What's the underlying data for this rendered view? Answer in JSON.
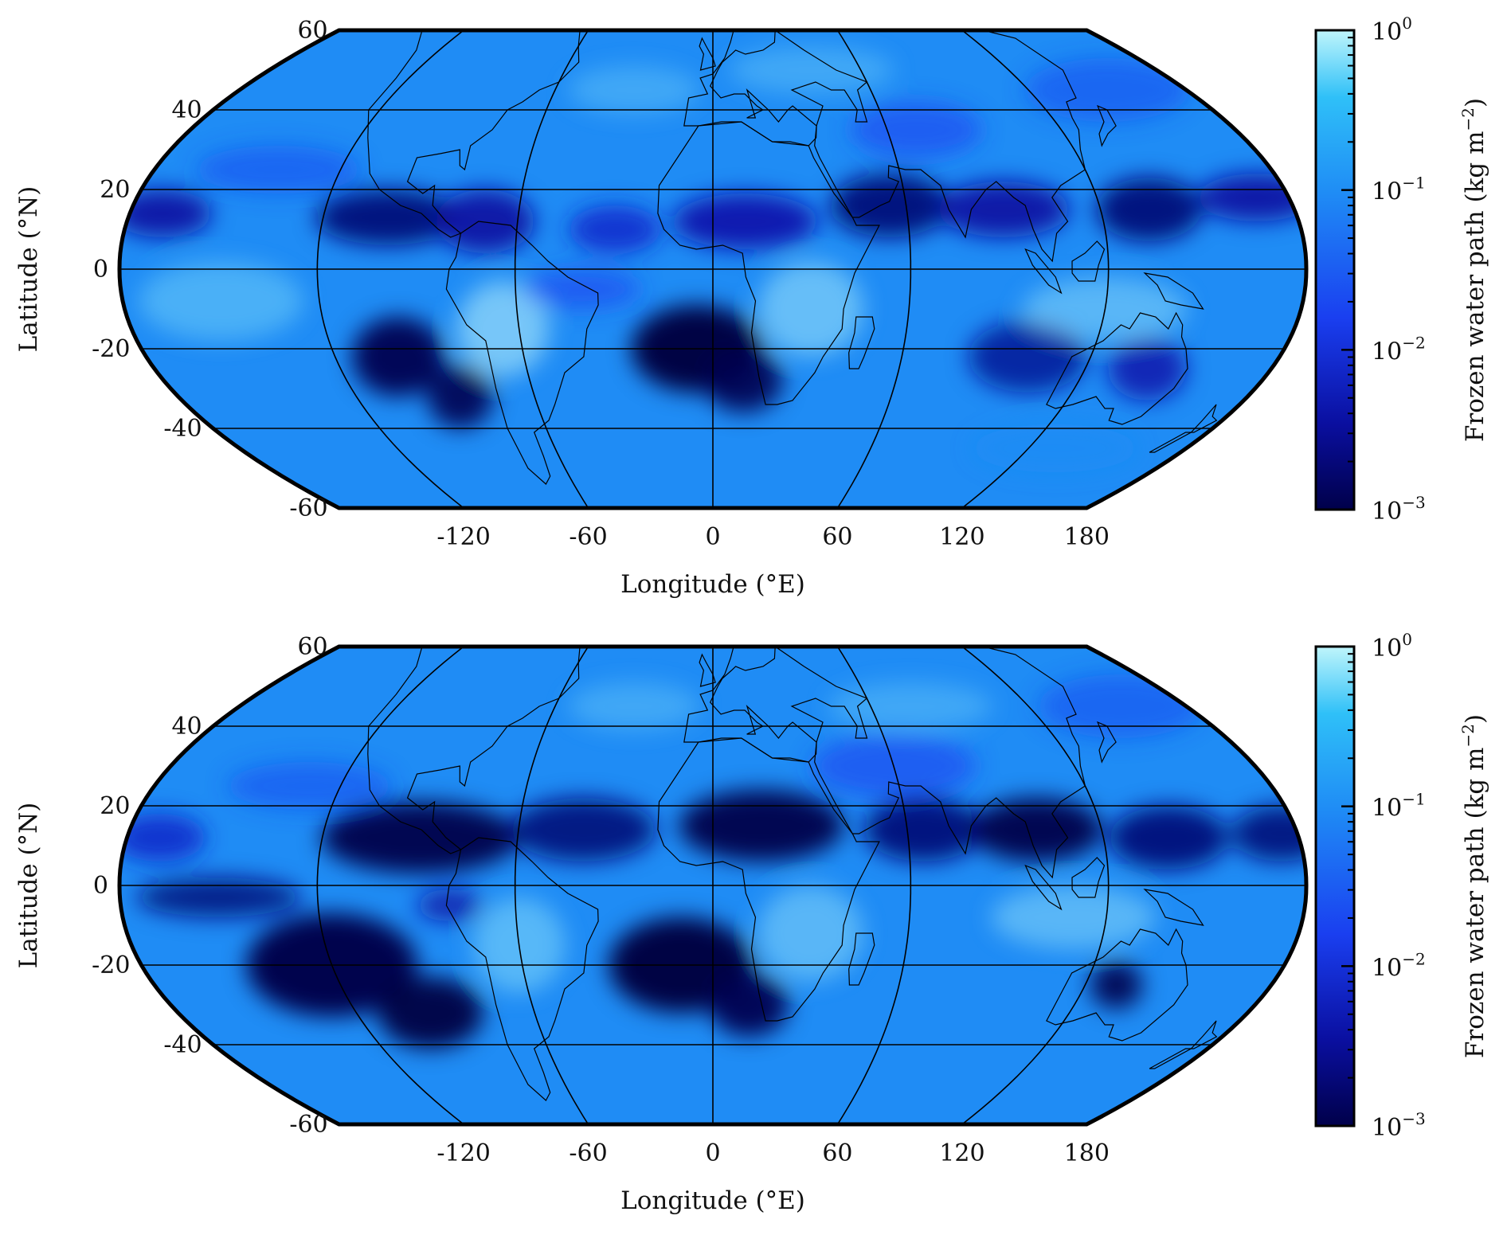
{
  "colorbar": {
    "label": "Frozen water path (kg m⁻²)",
    "label_main": "Frozen water path (kg m",
    "label_exp": "−2",
    "label_close": ")",
    "ticks": [
      {
        "base": "10",
        "exp": "0",
        "value": 1
      },
      {
        "base": "10",
        "exp": "−1",
        "value": 0.1
      },
      {
        "base": "10",
        "exp": "−2",
        "value": 0.01
      },
      {
        "base": "10",
        "exp": "−3",
        "value": 0.001
      }
    ],
    "scale": "log",
    "range": [
      0.001,
      1
    ],
    "colors": [
      "#00004a",
      "#0a0fa0",
      "#1a3ff0",
      "#1f8cf5",
      "#2fc0f8",
      "#bff5fb"
    ]
  },
  "panels": [
    {
      "id": "top",
      "xlabel": "Longitude (°E)",
      "ylabel": "Latitude (°N)",
      "lon_ticks": [
        "-120",
        "-60",
        "0",
        "60",
        "120",
        "180"
      ],
      "lat_ticks": [
        "60",
        "40",
        "20",
        "0",
        "-20",
        "-40",
        "-60"
      ]
    },
    {
      "id": "bottom",
      "xlabel": "Longitude (°E)",
      "ylabel": "Latitude (°N)",
      "lon_ticks": [
        "-120",
        "-60",
        "0",
        "60",
        "120",
        "180"
      ],
      "lat_ticks": [
        "60",
        "40",
        "20",
        "0",
        "-20",
        "-40",
        "-60"
      ]
    }
  ],
  "map": {
    "projection": "Robinson-like pseudocylindrical",
    "lon_range": [
      -180,
      180
    ],
    "lat_range": [
      -60,
      60
    ],
    "central_longitude": 0,
    "gridlines": true,
    "coastlines": true
  }
}
